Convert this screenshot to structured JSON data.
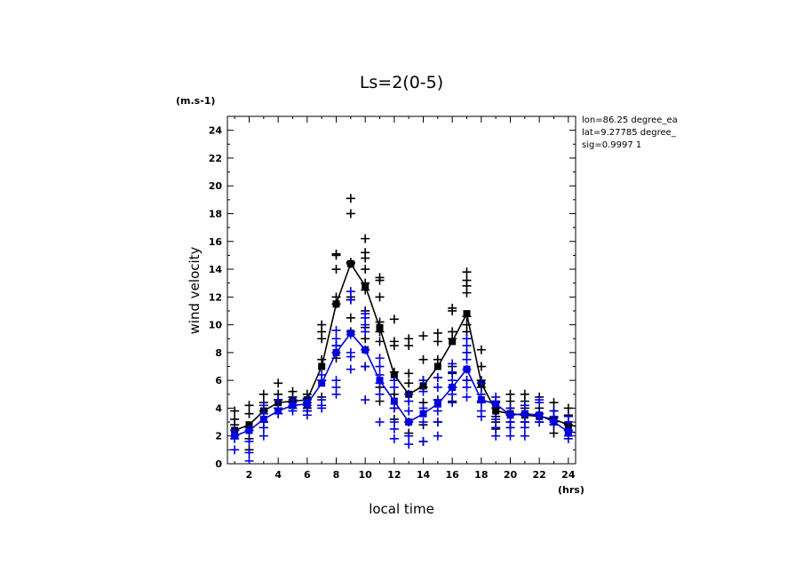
{
  "chart_data": {
    "type": "scatter",
    "title": "Ls=2(0-5)",
    "xlabel": "local time",
    "ylabel": "wind velocity",
    "y_unit": "(m.s-1)",
    "x_unit": "(hrs)",
    "xlim": [
      0.5,
      24.5
    ],
    "ylim": [
      0,
      25
    ],
    "xticks": [
      2,
      4,
      6,
      8,
      10,
      12,
      14,
      16,
      18,
      20,
      22,
      24
    ],
    "yticks": [
      0,
      2,
      4,
      6,
      8,
      10,
      12,
      14,
      16,
      18,
      20,
      22,
      24
    ],
    "annotations": [
      "lon=86.25 degree_ea",
      "lat=9.27785 degree_",
      "sig=0.9997 1"
    ],
    "x": [
      1,
      2,
      3,
      4,
      5,
      6,
      7,
      8,
      9,
      10,
      11,
      12,
      13,
      14,
      15,
      16,
      17,
      18,
      19,
      20,
      21,
      22,
      23,
      24,
      25
    ],
    "series": [
      {
        "color": "#000000",
        "mean": [
          2.4,
          2.8,
          3.8,
          4.4,
          4.5,
          4.6,
          7.0,
          11.5,
          14.4,
          12.8,
          9.8,
          6.4,
          5.0,
          5.6,
          7.0,
          8.8,
          10.8,
          5.8,
          3.8,
          3.6,
          3.5,
          3.4,
          3.2,
          2.8,
          2.6
        ],
        "samples": [
          [
            3.8,
            3.2,
            2.8,
            2.4,
            2.0
          ],
          [
            4.2,
            3.6,
            2.6,
            1.8,
            1.0
          ],
          [
            5.0,
            4.4,
            3.8,
            3.0,
            2.6
          ],
          [
            5.8,
            5.0,
            4.6,
            4.0,
            3.6
          ],
          [
            5.2,
            4.8,
            4.4,
            4.0
          ],
          [
            5.0,
            4.7,
            4.4,
            4.0,
            3.8
          ],
          [
            10.0,
            9.5,
            9.0,
            7.5,
            6.0,
            4.8
          ],
          [
            15.1,
            15.0,
            14.0,
            12.0,
            11.5,
            8.5,
            8.0,
            7.6
          ],
          [
            19.1,
            18.0,
            14.5,
            14.4,
            12.0,
            11.8,
            10.5,
            9.5
          ],
          [
            16.2,
            15.2,
            14.8,
            14.0,
            13.0,
            12.5,
            11.0,
            9.8,
            9.0,
            7.0
          ],
          [
            13.4,
            13.2,
            12.0,
            10.2,
            9.5,
            8.8,
            5.5,
            4.5
          ],
          [
            10.4,
            8.8,
            8.5,
            6.6,
            5.0,
            4.0,
            3.2
          ],
          [
            9.0,
            8.5,
            6.5,
            5.8,
            4.5,
            3.0,
            2.2
          ],
          [
            9.2,
            7.5,
            6.0,
            5.5,
            4.4,
            2.8,
            1.6
          ],
          [
            9.4,
            8.8,
            7.5,
            6.2,
            4.6,
            3.0
          ],
          [
            11.2,
            11.0,
            9.5,
            9.0,
            7.0,
            6.5,
            5.5,
            4.5
          ],
          [
            13.8,
            13.2,
            12.8,
            12.3,
            10.6,
            10.0,
            9.5,
            8.0,
            6.0
          ],
          [
            8.2,
            7.0,
            6.0,
            5.5,
            4.5
          ],
          [
            4.5,
            4.0,
            3.4,
            3.0,
            2.5
          ],
          [
            5.0,
            4.5,
            4.0,
            3.5,
            3.0,
            2.6
          ],
          [
            5.0,
            4.5,
            4.0,
            3.5,
            3.0
          ],
          [
            4.8,
            4.0,
            3.6,
            3.0
          ],
          [
            4.4,
            3.8,
            3.3,
            2.8,
            2.2
          ],
          [
            4.0,
            3.5,
            2.8,
            2.4
          ],
          [
            4.0,
            3.4,
            2.8,
            2.2
          ]
        ]
      },
      {
        "color": "#0000dd",
        "mean": [
          2.0,
          2.4,
          3.2,
          3.8,
          4.2,
          4.3,
          5.8,
          8.0,
          9.4,
          8.2,
          6.0,
          4.5,
          3.0,
          3.6,
          4.3,
          5.5,
          6.8,
          4.6,
          4.3,
          3.5,
          3.6,
          3.5,
          3.0,
          2.3,
          2.2
        ],
        "samples": [
          [
            2.4,
            2.0,
            1.8,
            1.0
          ],
          [
            2.4,
            1.6,
            0.8,
            0.2
          ],
          [
            4.2,
            3.6,
            3.0,
            2.6,
            2.0
          ],
          [
            4.6,
            4.0,
            3.6
          ],
          [
            4.6,
            4.2,
            3.8
          ],
          [
            4.6,
            4.2,
            3.8,
            3.5
          ],
          [
            6.4,
            6.0,
            4.6,
            4.2,
            4.0
          ],
          [
            9.6,
            9.0,
            8.5,
            6.0,
            5.5,
            5.0
          ],
          [
            12.4,
            11.8,
            9.3,
            8.0,
            7.7,
            6.8
          ],
          [
            10.8,
            10.5,
            10.0,
            9.5,
            8.2,
            7.0,
            4.6
          ],
          [
            7.6,
            7.0,
            6.4,
            5.8,
            5.0,
            3.0
          ],
          [
            6.0,
            5.5,
            4.0,
            3.0,
            2.5,
            1.8
          ],
          [
            5.0,
            4.5,
            3.8,
            3.0,
            2.0,
            1.4
          ],
          [
            6.0,
            5.2,
            4.0,
            3.0,
            1.6
          ],
          [
            6.2,
            5.5,
            4.6,
            3.8,
            3.0,
            2.0
          ],
          [
            7.2,
            6.6,
            6.0,
            5.5,
            5.0,
            4.4
          ],
          [
            9.0,
            8.5,
            8.0,
            7.5,
            6.8,
            6.0,
            5.5,
            4.8
          ],
          [
            5.8,
            5.0,
            4.4,
            3.8,
            3.4
          ],
          [
            4.8,
            4.4,
            3.2,
            2.6,
            2.0
          ],
          [
            4.0,
            3.6,
            3.0,
            2.6,
            2.0
          ],
          [
            4.2,
            3.6,
            3.0,
            2.6,
            2.0
          ],
          [
            4.6,
            4.4,
            3.6,
            3.0
          ],
          [
            3.8,
            3.4,
            3.0,
            2.8
          ],
          [
            3.4,
            3.0,
            2.4,
            2.0,
            1.8
          ],
          [
            3.0,
            2.6,
            2.0,
            1.8,
            1.0
          ]
        ]
      }
    ]
  }
}
